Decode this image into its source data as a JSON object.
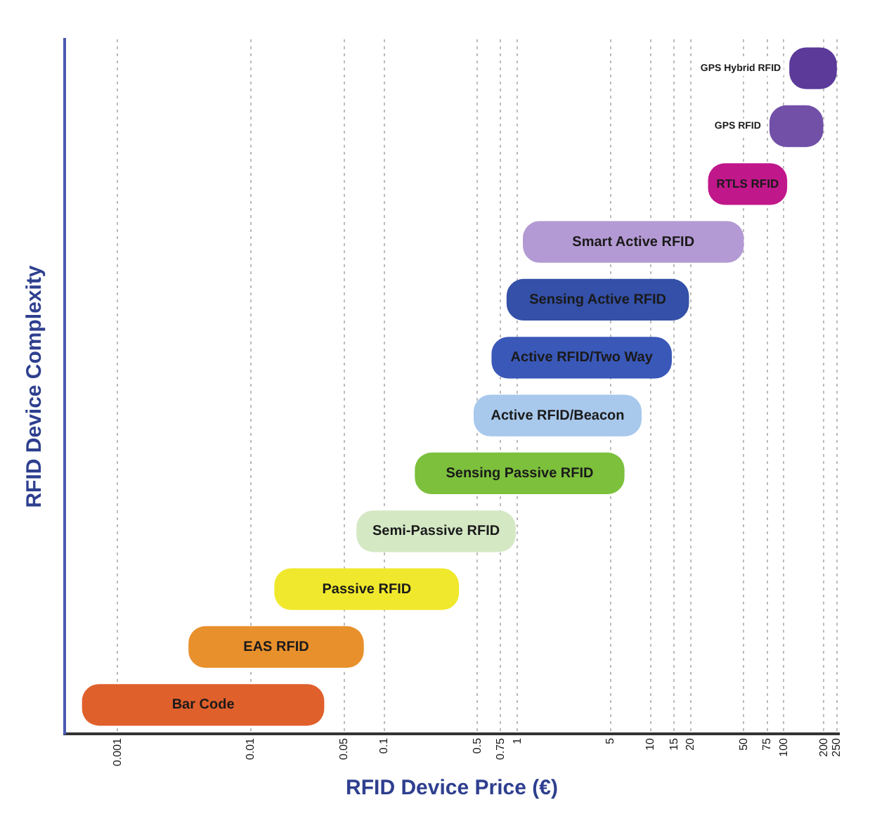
{
  "chart_data": {
    "type": "bar",
    "orientation": "horizontal",
    "log": "x",
    "xlabel": "RFID Device Price (€)",
    "ylabel": "RFID Device Complexity",
    "categories": [
      "GPS Hybrid RFID",
      "GPS RFID",
      "RTLS RFID",
      "Smart Active RFID",
      "Sensing Active RFID",
      "Active RFID/Two Way",
      "Active RFID/Beacon",
      "Sensing Passive RFID",
      "Semi-Passive RFID",
      "Passive RFID",
      "EAS RFID",
      "Bar Code"
    ],
    "base": [
      110,
      78,
      27,
      1.1,
      0.83,
      0.64,
      0.47,
      0.17,
      0.062,
      0.015,
      0.0034,
      0.00054
    ],
    "values": [
      140,
      120,
      79,
      49,
      18.6,
      13.8,
      8.1,
      6.2,
      0.91,
      0.35,
      0.067,
      0.035
    ],
    "colors": [
      "#5b3a9a",
      "#7250a8",
      "#c0178a",
      "#b49ad4",
      "#3450a8",
      "#3a58b8",
      "#a8c8ec",
      "#7cc03c",
      "#d4e8c4",
      "#f0e82c",
      "#e8902c",
      "#e0602c"
    ],
    "xlim": [
      0.0004,
      260
    ],
    "xticks": [
      0.001,
      0.01,
      0.05,
      0.1,
      0.5,
      0.75,
      1,
      5,
      10,
      15,
      20,
      50,
      75,
      100,
      200,
      250
    ],
    "grid": "x",
    "tick_labels": "x",
    "legend": false
  }
}
